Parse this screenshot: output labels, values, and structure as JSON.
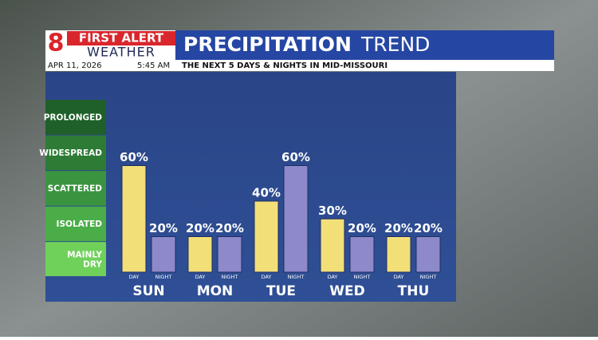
{
  "header": {
    "logo_number": "8",
    "brand_top": "FIRST ALERT",
    "brand_bottom": "WEATHER",
    "date": "APR 11, 2026",
    "time": "5:45 AM",
    "subtitle": "THE NEXT 5 DAYS & NIGHTS IN MID-MISSOURI"
  },
  "chart_data": {
    "type": "bar",
    "title": "PRECIPITATION",
    "title_suffix": "TREND",
    "categories": [
      "SUN",
      "MON",
      "TUE",
      "WED",
      "THU"
    ],
    "series": [
      {
        "name": "DAY",
        "color": "#f2df78",
        "values": [
          60,
          20,
          40,
          30,
          20
        ],
        "value_labels": [
          "60%",
          "20%",
          "40%",
          "30%",
          "20%"
        ]
      },
      {
        "name": "NIGHT",
        "color": "#8e89c9",
        "values": [
          20,
          20,
          60,
          20,
          20
        ],
        "value_labels": [
          "20%",
          "20%",
          "60%",
          "20%",
          "20%"
        ]
      }
    ],
    "ylim": [
      0,
      100
    ],
    "yticks": [
      {
        "value": 7,
        "label": "MAINLY DRY"
      },
      {
        "value": 27,
        "label": "ISOLATED"
      },
      {
        "value": 47,
        "label": "SCATTERED"
      },
      {
        "value": 67,
        "label": "WIDESPREAD"
      },
      {
        "value": 87,
        "label": "PROLONGED"
      }
    ],
    "band_colors": [
      "#6fd15a",
      "#4aad48",
      "#3a943f",
      "#2d7b35",
      "#1f602a"
    ]
  }
}
